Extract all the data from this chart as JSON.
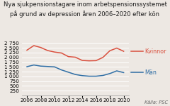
{
  "title_line1": "Nya sjukpensionstagare inom arbetspensionssystemet",
  "title_line2": "på grund av depression åren 2006–2020 efter kön",
  "years": [
    2006,
    2007,
    2008,
    2009,
    2010,
    2011,
    2012,
    2013,
    2014,
    2015,
    2016,
    2017,
    2018,
    2019,
    2020
  ],
  "kvinnor": [
    2380,
    2620,
    2520,
    2360,
    2280,
    2230,
    2040,
    2010,
    1840,
    1820,
    1830,
    2000,
    2350,
    2490,
    2320
  ],
  "man": [
    1510,
    1600,
    1540,
    1520,
    1500,
    1340,
    1220,
    1100,
    1040,
    1010,
    1010,
    1050,
    1150,
    1290,
    1200
  ],
  "color_kvinnor": "#d94f3d",
  "color_man": "#2e6da4",
  "legend_labels": [
    "Kvinnor",
    "Män"
  ],
  "yticks": [
    250,
    500,
    750,
    1000,
    1250,
    1500,
    1750,
    2000,
    2250,
    2500,
    2750
  ],
  "ylim": [
    0,
    2900
  ],
  "xticks": [
    2006,
    2008,
    2010,
    2012,
    2014,
    2016,
    2018,
    2020
  ],
  "xlim": [
    2005.3,
    2020.8
  ],
  "source": "Källa: PSC",
  "bg_color": "#ede8e3",
  "title_fontsize": 6.0,
  "tick_fontsize": 5.2,
  "legend_fontsize": 5.8,
  "source_fontsize": 4.8
}
